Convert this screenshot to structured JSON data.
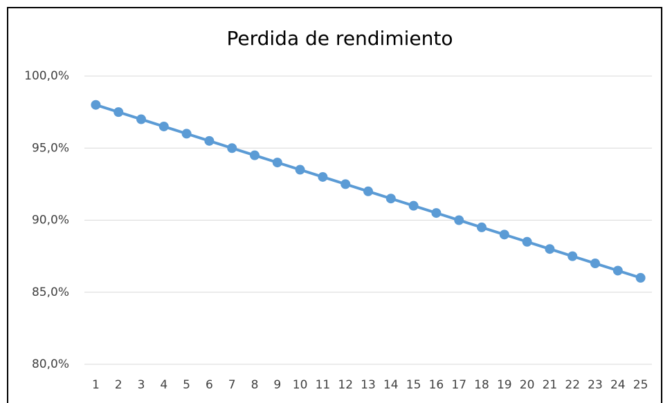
{
  "chart_data": {
    "type": "line",
    "title": "Perdida de rendimiento",
    "categories": [
      1,
      2,
      3,
      4,
      5,
      6,
      7,
      8,
      9,
      10,
      11,
      12,
      13,
      14,
      15,
      16,
      17,
      18,
      19,
      20,
      21,
      22,
      23,
      24,
      25
    ],
    "series": [
      {
        "color": "#5b9bd5",
        "values": [
          98.0,
          97.5,
          97.0,
          96.5,
          96.0,
          95.5,
          95.0,
          94.5,
          94.0,
          93.5,
          93.0,
          92.5,
          92.0,
          91.5,
          91.0,
          90.5,
          90.0,
          89.5,
          89.0,
          88.5,
          88.0,
          87.5,
          87.0,
          86.5,
          86.0
        ]
      }
    ],
    "ylim": [
      80,
      100
    ],
    "yticks": [
      {
        "value": 80,
        "label": "80,0%"
      },
      {
        "value": 85,
        "label": "85,0%"
      },
      {
        "value": 90,
        "label": "90,0%"
      },
      {
        "value": 95,
        "label": "95,0%"
      },
      {
        "value": 100,
        "label": "100,0%"
      }
    ],
    "grid": true
  }
}
